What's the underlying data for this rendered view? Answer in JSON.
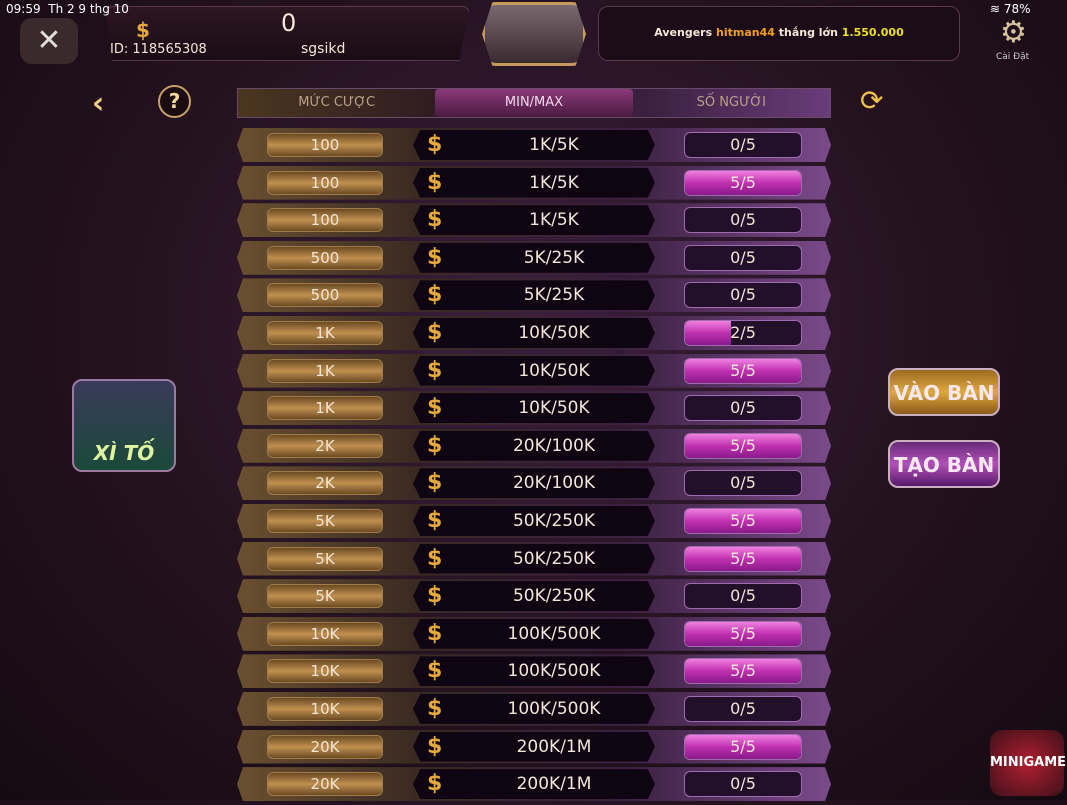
{
  "status": {
    "time": "09:59",
    "date": "Th 2 9 thg 10",
    "battery": "78%"
  },
  "player": {
    "balance": "0",
    "id": "ID: 118565308",
    "name": "sgsikd"
  },
  "news": {
    "prefix": "Avengers",
    "user": "hitman44",
    "middle": "thắng lớn",
    "amount": "1.550.000"
  },
  "settings_label": "Cài Đặt",
  "tabs": [
    "MỨC CƯỢC",
    "MIN/MAX",
    "SỐ NGƯỜI"
  ],
  "active_tab": 1,
  "game": {
    "name": "XÌ TỐ"
  },
  "buttons": {
    "join": "VÀO BÀN",
    "create": "TẠO BÀN"
  },
  "minigame_label": "MINIGAME",
  "colors": {
    "gold": "#e8a93a",
    "magenta": "#c030b0",
    "username": "#f0a020",
    "amount": "#f0e020"
  },
  "rows": [
    {
      "bet": "100",
      "minmax": "1K/5K",
      "players": "0/5"
    },
    {
      "bet": "100",
      "minmax": "1K/5K",
      "players": "5/5"
    },
    {
      "bet": "100",
      "minmax": "1K/5K",
      "players": "0/5"
    },
    {
      "bet": "500",
      "minmax": "5K/25K",
      "players": "0/5"
    },
    {
      "bet": "500",
      "minmax": "5K/25K",
      "players": "0/5"
    },
    {
      "bet": "1K",
      "minmax": "10K/50K",
      "players": "2/5"
    },
    {
      "bet": "1K",
      "minmax": "10K/50K",
      "players": "5/5"
    },
    {
      "bet": "1K",
      "minmax": "10K/50K",
      "players": "0/5"
    },
    {
      "bet": "2K",
      "minmax": "20K/100K",
      "players": "5/5"
    },
    {
      "bet": "2K",
      "minmax": "20K/100K",
      "players": "0/5"
    },
    {
      "bet": "5K",
      "minmax": "50K/250K",
      "players": "5/5"
    },
    {
      "bet": "5K",
      "minmax": "50K/250K",
      "players": "5/5"
    },
    {
      "bet": "5K",
      "minmax": "50K/250K",
      "players": "0/5"
    },
    {
      "bet": "10K",
      "minmax": "100K/500K",
      "players": "5/5"
    },
    {
      "bet": "10K",
      "minmax": "100K/500K",
      "players": "5/5"
    },
    {
      "bet": "10K",
      "minmax": "100K/500K",
      "players": "0/5"
    },
    {
      "bet": "20K",
      "minmax": "200K/1M",
      "players": "5/5"
    },
    {
      "bet": "20K",
      "minmax": "200K/1M",
      "players": "0/5"
    }
  ]
}
